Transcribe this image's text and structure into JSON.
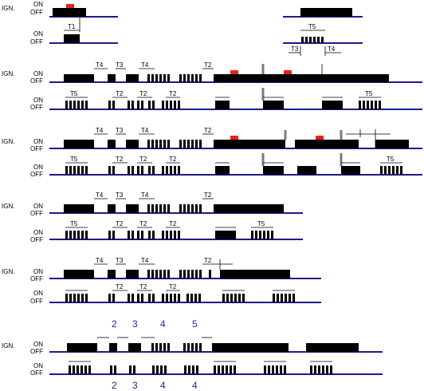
{
  "labels": {
    "ign": "IGN.",
    "on": "ON",
    "off": "OFF"
  },
  "colors": {
    "baseline": "#1c1c8c",
    "marker": "#e32420",
    "number": "#1c2a8a",
    "ink": "#000000",
    "divider": "#7a7a7a"
  },
  "timers": {
    "t1": "T1",
    "t2": "T2",
    "t3": "T3",
    "t4": "T4",
    "t5": "T5"
  },
  "sequence_numbers": {
    "top": [
      "2",
      "3",
      "4",
      "5"
    ],
    "bottom": [
      "2",
      "3",
      "4",
      "4"
    ]
  }
}
